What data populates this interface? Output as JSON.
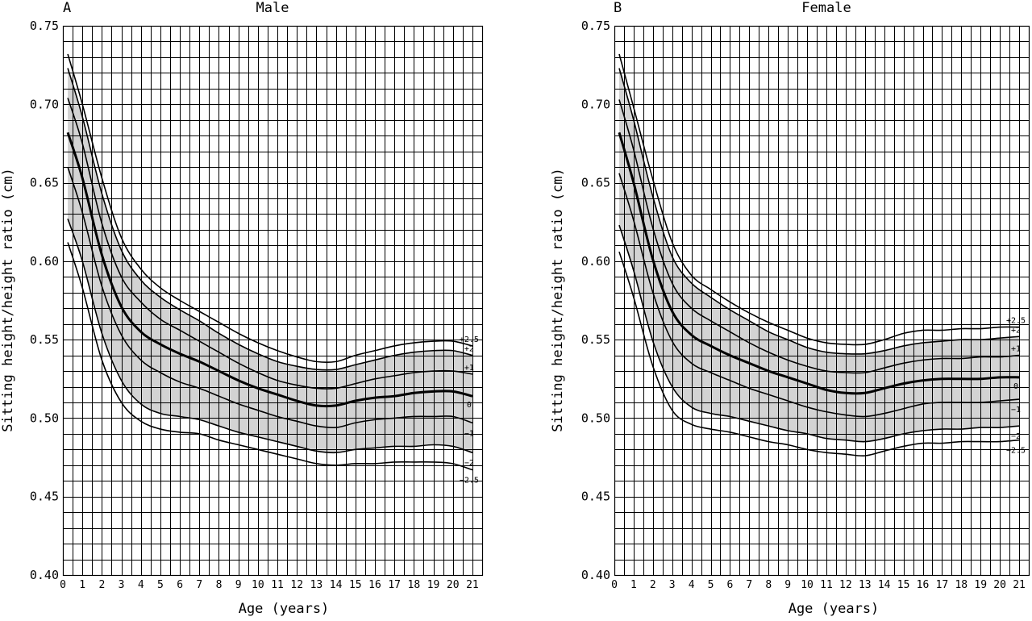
{
  "colors": {
    "band": "#d3d3d3",
    "grid": "#000000",
    "line": "#000000",
    "background": "#ffffff"
  },
  "chart_data": [
    {
      "type": "line",
      "panel_letter": "A",
      "title": "Male",
      "xlabel": "Age (years)",
      "ylabel": "Sitting height/height ratio (cm)",
      "xlim": [
        0,
        21.5
      ],
      "ylim": [
        0.4,
        0.75
      ],
      "xticks": [
        "0",
        "1",
        "2",
        "3",
        "4",
        "5",
        "6",
        "7",
        "8",
        "9",
        "10",
        "11",
        "12",
        "13",
        "14",
        "15",
        "16",
        "17",
        "18",
        "19",
        "20",
        "21"
      ],
      "yticks": [
        "0.40",
        "0.45",
        "0.50",
        "0.55",
        "0.60",
        "0.65",
        "0.70",
        "0.75"
      ],
      "grid": true,
      "shaded_band": [
        "+2",
        "-2"
      ],
      "series": [
        {
          "name": "+2.5",
          "x": [
            0.25,
            1,
            2,
            3,
            4,
            5,
            6,
            7,
            8,
            9,
            10,
            11,
            12,
            13,
            14,
            15,
            16,
            17,
            18,
            19,
            20,
            21
          ],
          "y": [
            0.732,
            0.7,
            0.653,
            0.615,
            0.595,
            0.583,
            0.575,
            0.568,
            0.561,
            0.554,
            0.548,
            0.543,
            0.539,
            0.536,
            0.536,
            0.54,
            0.543,
            0.546,
            0.548,
            0.549,
            0.549,
            0.546
          ]
        },
        {
          "name": "+2",
          "x": [
            0.25,
            1,
            2,
            3,
            4,
            5,
            6,
            7,
            8,
            9,
            10,
            11,
            12,
            13,
            14,
            15,
            16,
            17,
            18,
            19,
            20,
            21
          ],
          "y": [
            0.723,
            0.692,
            0.643,
            0.607,
            0.588,
            0.577,
            0.569,
            0.562,
            0.554,
            0.547,
            0.541,
            0.536,
            0.533,
            0.531,
            0.531,
            0.534,
            0.537,
            0.54,
            0.542,
            0.543,
            0.543,
            0.54
          ]
        },
        {
          "name": "+1",
          "x": [
            0.25,
            1,
            2,
            3,
            4,
            5,
            6,
            7,
            8,
            9,
            10,
            11,
            12,
            13,
            14,
            15,
            16,
            17,
            18,
            19,
            20,
            21
          ],
          "y": [
            0.704,
            0.675,
            0.624,
            0.59,
            0.574,
            0.563,
            0.556,
            0.549,
            0.542,
            0.535,
            0.529,
            0.524,
            0.521,
            0.519,
            0.519,
            0.522,
            0.525,
            0.527,
            0.529,
            0.53,
            0.53,
            0.528
          ]
        },
        {
          "name": "0",
          "x": [
            0.25,
            1,
            2,
            3,
            4,
            5,
            6,
            7,
            8,
            9,
            10,
            11,
            12,
            13,
            14,
            15,
            16,
            17,
            18,
            19,
            20,
            21
          ],
          "y": [
            0.682,
            0.653,
            0.604,
            0.571,
            0.555,
            0.547,
            0.541,
            0.536,
            0.53,
            0.524,
            0.519,
            0.515,
            0.511,
            0.508,
            0.508,
            0.511,
            0.513,
            0.514,
            0.516,
            0.517,
            0.517,
            0.514
          ]
        },
        {
          "name": "-1",
          "x": [
            0.25,
            1,
            2,
            3,
            4,
            5,
            6,
            7,
            8,
            9,
            10,
            11,
            12,
            13,
            14,
            15,
            16,
            17,
            18,
            19,
            20,
            21
          ],
          "y": [
            0.66,
            0.631,
            0.584,
            0.553,
            0.537,
            0.529,
            0.523,
            0.519,
            0.514,
            0.509,
            0.505,
            0.501,
            0.498,
            0.495,
            0.494,
            0.497,
            0.499,
            0.5,
            0.501,
            0.501,
            0.501,
            0.497
          ]
        },
        {
          "name": "-2",
          "x": [
            0.25,
            1,
            2,
            3,
            4,
            5,
            6,
            7,
            8,
            9,
            10,
            11,
            12,
            13,
            14,
            15,
            16,
            17,
            18,
            19,
            20,
            21
          ],
          "y": [
            0.627,
            0.6,
            0.554,
            0.524,
            0.509,
            0.503,
            0.501,
            0.499,
            0.495,
            0.491,
            0.488,
            0.485,
            0.482,
            0.479,
            0.478,
            0.48,
            0.481,
            0.482,
            0.482,
            0.483,
            0.482,
            0.478
          ]
        },
        {
          "name": "-2.5",
          "x": [
            0.25,
            1,
            2,
            3,
            4,
            5,
            6,
            7,
            8,
            9,
            10,
            11,
            12,
            13,
            14,
            15,
            16,
            17,
            18,
            19,
            20,
            21
          ],
          "y": [
            0.612,
            0.583,
            0.537,
            0.51,
            0.498,
            0.493,
            0.491,
            0.49,
            0.486,
            0.483,
            0.48,
            0.477,
            0.474,
            0.471,
            0.47,
            0.471,
            0.471,
            0.472,
            0.472,
            0.472,
            0.471,
            0.467
          ]
        }
      ]
    },
    {
      "type": "line",
      "panel_letter": "B",
      "title": "Female",
      "xlabel": "Age (years)",
      "ylabel": "Sitting height/height ratio (cm)",
      "xlim": [
        0,
        21.5
      ],
      "ylim": [
        0.4,
        0.75
      ],
      "xticks": [
        "0",
        "1",
        "2",
        "3",
        "4",
        "5",
        "6",
        "7",
        "8",
        "9",
        "10",
        "11",
        "12",
        "13",
        "14",
        "15",
        "16",
        "17",
        "18",
        "19",
        "20",
        "21"
      ],
      "yticks": [
        "0.40",
        "0.45",
        "0.50",
        "0.55",
        "0.60",
        "0.65",
        "0.70",
        "0.75"
      ],
      "grid": true,
      "shaded_band": [
        "+2",
        "-2"
      ],
      "series": [
        {
          "name": "+2.5",
          "x": [
            0.25,
            1,
            2,
            3,
            4,
            5,
            6,
            7,
            8,
            9,
            10,
            11,
            12,
            13,
            14,
            15,
            16,
            17,
            18,
            19,
            20,
            21
          ],
          "y": [
            0.732,
            0.698,
            0.652,
            0.612,
            0.591,
            0.582,
            0.574,
            0.567,
            0.561,
            0.556,
            0.551,
            0.548,
            0.547,
            0.547,
            0.55,
            0.554,
            0.556,
            0.556,
            0.557,
            0.557,
            0.558,
            0.558
          ]
        },
        {
          "name": "+2",
          "x": [
            0.25,
            1,
            2,
            3,
            4,
            5,
            6,
            7,
            8,
            9,
            10,
            11,
            12,
            13,
            14,
            15,
            16,
            17,
            18,
            19,
            20,
            21
          ],
          "y": [
            0.723,
            0.69,
            0.641,
            0.603,
            0.586,
            0.577,
            0.569,
            0.562,
            0.555,
            0.55,
            0.545,
            0.542,
            0.541,
            0.541,
            0.543,
            0.546,
            0.548,
            0.549,
            0.55,
            0.55,
            0.551,
            0.552
          ]
        },
        {
          "name": "+1",
          "x": [
            0.25,
            1,
            2,
            3,
            4,
            5,
            6,
            7,
            8,
            9,
            10,
            11,
            12,
            13,
            14,
            15,
            16,
            17,
            18,
            19,
            20,
            21
          ],
          "y": [
            0.703,
            0.671,
            0.621,
            0.586,
            0.57,
            0.562,
            0.555,
            0.548,
            0.542,
            0.537,
            0.533,
            0.53,
            0.529,
            0.529,
            0.532,
            0.535,
            0.537,
            0.538,
            0.538,
            0.539,
            0.539,
            0.54
          ]
        },
        {
          "name": "0",
          "x": [
            0.25,
            1,
            2,
            3,
            4,
            5,
            6,
            7,
            8,
            9,
            10,
            11,
            12,
            13,
            14,
            15,
            16,
            17,
            18,
            19,
            20,
            21
          ],
          "y": [
            0.682,
            0.65,
            0.601,
            0.568,
            0.553,
            0.546,
            0.54,
            0.535,
            0.53,
            0.526,
            0.522,
            0.518,
            0.516,
            0.516,
            0.519,
            0.522,
            0.524,
            0.525,
            0.525,
            0.525,
            0.526,
            0.526
          ]
        },
        {
          "name": "-1",
          "x": [
            0.25,
            1,
            2,
            3,
            4,
            5,
            6,
            7,
            8,
            9,
            10,
            11,
            12,
            13,
            14,
            15,
            16,
            17,
            18,
            19,
            20,
            21
          ],
          "y": [
            0.656,
            0.626,
            0.58,
            0.549,
            0.535,
            0.529,
            0.524,
            0.519,
            0.515,
            0.511,
            0.507,
            0.504,
            0.502,
            0.501,
            0.503,
            0.506,
            0.509,
            0.51,
            0.51,
            0.51,
            0.511,
            0.512
          ]
        },
        {
          "name": "-2",
          "x": [
            0.25,
            1,
            2,
            3,
            4,
            5,
            6,
            7,
            8,
            9,
            10,
            11,
            12,
            13,
            14,
            15,
            16,
            17,
            18,
            19,
            20,
            21
          ],
          "y": [
            0.623,
            0.594,
            0.549,
            0.52,
            0.507,
            0.503,
            0.501,
            0.498,
            0.495,
            0.492,
            0.49,
            0.487,
            0.486,
            0.485,
            0.487,
            0.49,
            0.492,
            0.493,
            0.493,
            0.494,
            0.494,
            0.495
          ]
        },
        {
          "name": "-2.5",
          "x": [
            0.25,
            1,
            2,
            3,
            4,
            5,
            6,
            7,
            8,
            9,
            10,
            11,
            12,
            13,
            14,
            15,
            16,
            17,
            18,
            19,
            20,
            21
          ],
          "y": [
            0.606,
            0.577,
            0.533,
            0.505,
            0.496,
            0.493,
            0.491,
            0.488,
            0.485,
            0.483,
            0.48,
            0.478,
            0.477,
            0.476,
            0.479,
            0.482,
            0.484,
            0.484,
            0.485,
            0.485,
            0.485,
            0.486
          ]
        }
      ]
    }
  ]
}
